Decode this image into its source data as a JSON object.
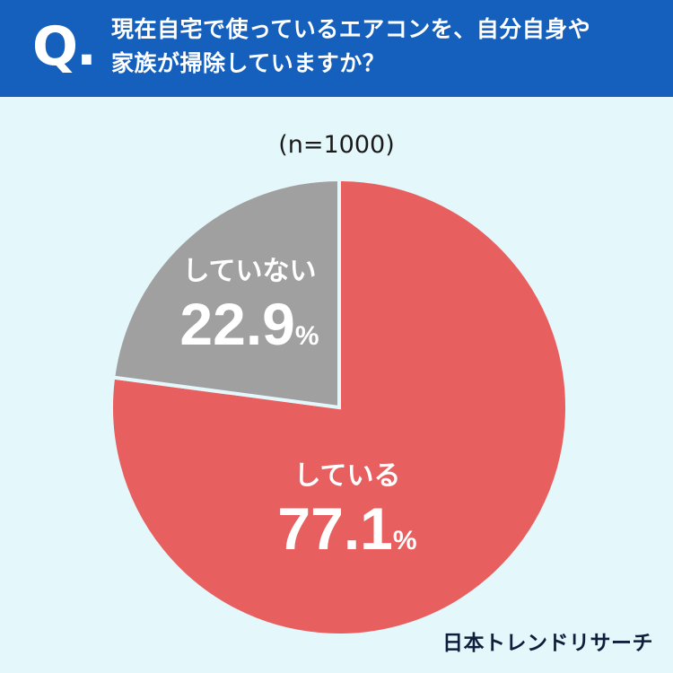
{
  "header": {
    "q_mark": "Q.",
    "question_line1": "現在自宅で使っているエアコンを、自分自身や",
    "question_line2": "家族が掃除していますか？"
  },
  "chart_data": {
    "type": "pie",
    "sample_size": "(n=1000)",
    "start_angle": "12 o'clock, clockwise",
    "slices": [
      {
        "label": "している",
        "value": 77.1,
        "value_text": "77.1",
        "unit": "%",
        "color": "#e85f5f"
      },
      {
        "label": "していない",
        "value": 22.9,
        "value_text": "22.9",
        "unit": "%",
        "color": "#a0a0a0"
      }
    ]
  },
  "brand": "日本トレンドリサーチ",
  "colors": {
    "header_bg": "#1560bd",
    "page_bg": "#e4f7fb",
    "separator": "#e4f7fb",
    "label_text": "#ffffff"
  }
}
